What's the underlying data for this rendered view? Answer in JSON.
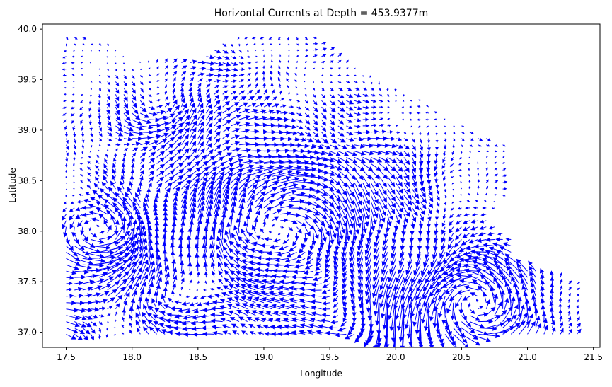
{
  "chart_data": {
    "type": "quiver",
    "title": "Horizontal Currents at Depth = 453.9377m",
    "xlabel": "Longitude",
    "ylabel": "Latitude",
    "xlim": [
      17.32,
      21.55
    ],
    "ylim": [
      36.85,
      40.05
    ],
    "xticks": [
      "17.5",
      "18.0",
      "18.5",
      "19.0",
      "19.5",
      "20.0",
      "20.5",
      "21.0",
      "21.5"
    ],
    "yticks": [
      "37.0",
      "37.5",
      "38.0",
      "38.5",
      "39.0",
      "39.5",
      "40.0"
    ],
    "grid": false,
    "arrow_color": "#0000ff",
    "grid_step_deg": 0.0625,
    "domain_outline": [
      [
        17.45,
        36.98
      ],
      [
        17.45,
        39.95
      ],
      [
        17.75,
        39.9
      ],
      [
        18.0,
        39.72
      ],
      [
        18.5,
        39.72
      ],
      [
        18.8,
        39.95
      ],
      [
        19.2,
        40.0
      ],
      [
        19.45,
        39.9
      ],
      [
        19.6,
        39.7
      ],
      [
        19.9,
        39.5
      ],
      [
        20.2,
        39.3
      ],
      [
        20.55,
        39.0
      ],
      [
        20.85,
        38.85
      ],
      [
        20.85,
        38.4
      ],
      [
        20.7,
        38.1
      ],
      [
        20.9,
        37.9
      ],
      [
        20.9,
        37.7
      ],
      [
        21.1,
        37.6
      ],
      [
        21.4,
        37.5
      ],
      [
        21.45,
        36.98
      ]
    ],
    "vortices": [
      {
        "center": [
          19.15,
          38.0
        ],
        "radius": 0.55,
        "strength": 0.22,
        "direction": "cw"
      },
      {
        "center": [
          20.6,
          37.25
        ],
        "radius": 0.32,
        "strength": 0.26,
        "direction": "ccw"
      },
      {
        "center": [
          18.35,
          37.25
        ],
        "radius": 0.25,
        "strength": 0.12,
        "direction": "cw"
      },
      {
        "center": [
          17.75,
          37.95
        ],
        "radius": 0.25,
        "strength": 0.14,
        "direction": "ccw"
      },
      {
        "center": [
          18.1,
          39.3
        ],
        "radius": 0.3,
        "strength": 0.08,
        "direction": "ccw"
      },
      {
        "center": [
          19.7,
          37.1
        ],
        "radius": 0.3,
        "strength": 0.1,
        "direction": "cw"
      }
    ],
    "flows": [
      {
        "center": [
          17.5,
          37.1
        ],
        "radius": 0.25,
        "u": 0.2,
        "v": -0.1
      },
      {
        "center": [
          17.7,
          37.7
        ],
        "radius": 0.3,
        "u": 0.15,
        "v": 0.06
      },
      {
        "center": [
          20.0,
          37.2
        ],
        "radius": 0.2,
        "u": 0.0,
        "v": -0.25
      },
      {
        "center": [
          18.3,
          39.65
        ],
        "radius": 0.4,
        "u": 0.12,
        "v": 0.0
      }
    ]
  }
}
